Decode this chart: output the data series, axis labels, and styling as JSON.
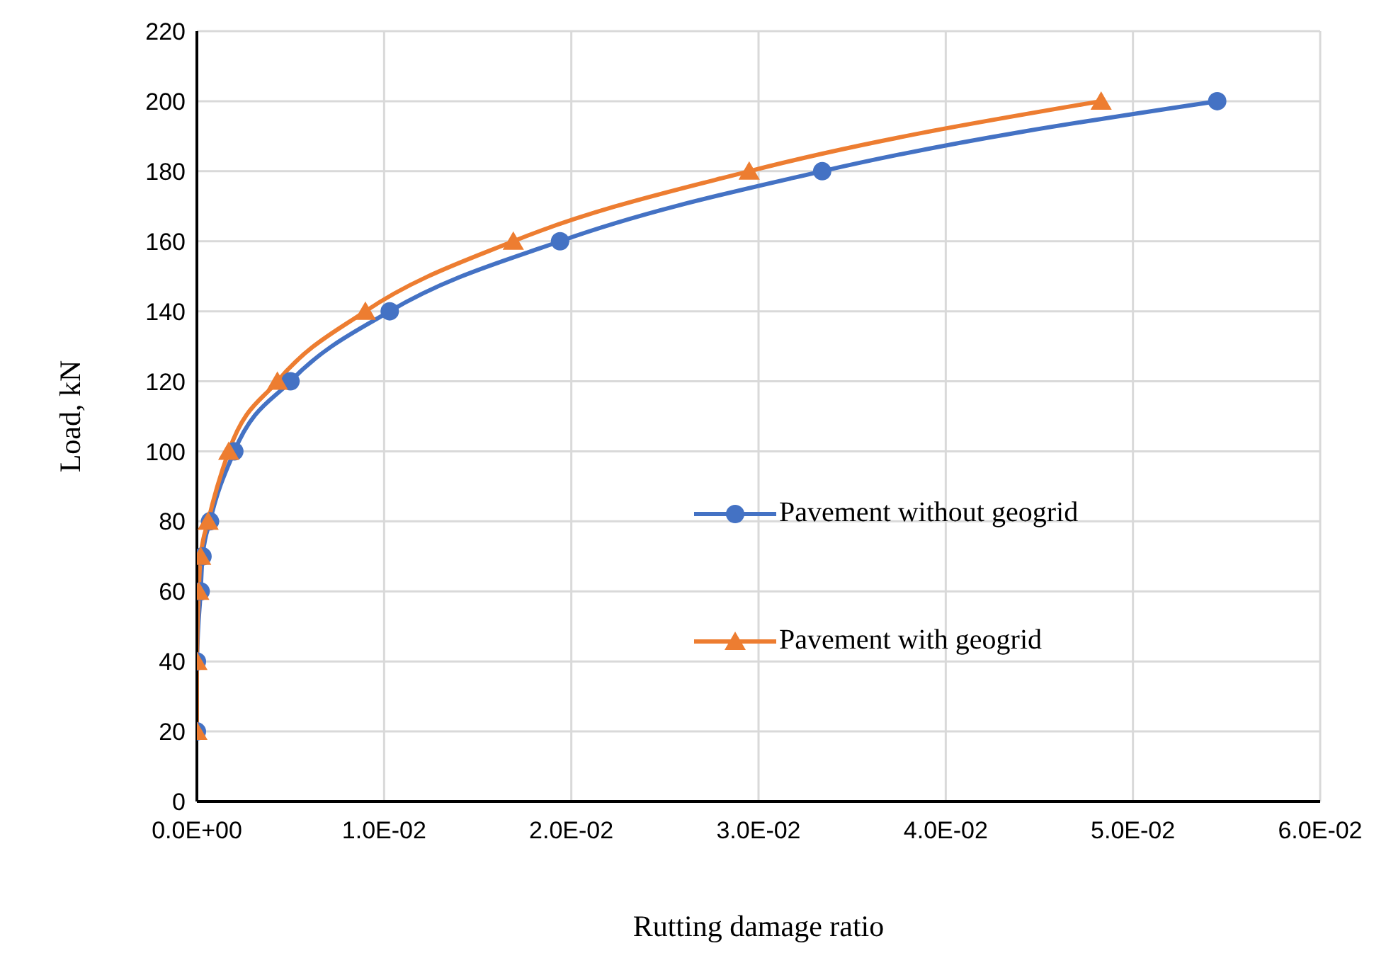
{
  "chart_data": {
    "type": "line",
    "xlabel": "Rutting damage ratio",
    "ylabel": "Load, kN",
    "xlim": [
      0,
      0.06
    ],
    "xticks": [
      {
        "value": 0,
        "label": "0.0E+00"
      },
      {
        "value": 0.01,
        "label": "1.0E-02"
      },
      {
        "value": 0.02,
        "label": "2.0E-02"
      },
      {
        "value": 0.03,
        "label": "3.0E-02"
      },
      {
        "value": 0.04,
        "label": "4.0E-02"
      },
      {
        "value": 0.05,
        "label": "5.0E-02"
      },
      {
        "value": 0.06,
        "label": "6.0E-02"
      }
    ],
    "ylim": [
      0,
      220
    ],
    "yticks": [
      0,
      20,
      40,
      60,
      80,
      100,
      120,
      140,
      160,
      180,
      200,
      220
    ],
    "grid": true,
    "legend": "center",
    "series": [
      {
        "name": "Pavement without geogrid",
        "color": "#4472c4",
        "marker": "circle",
        "x": [
          0,
          0,
          0.0002,
          0.0003,
          0.0007,
          0.002,
          0.005,
          0.0103,
          0.0194,
          0.0334,
          0.0545
        ],
        "values": [
          20,
          40,
          60,
          70,
          80,
          100,
          120,
          140,
          160,
          180,
          200
        ]
      },
      {
        "name": "Pavement with geogrid",
        "color": "#ed7d31",
        "marker": "triangle",
        "x": [
          0,
          0,
          0.0001,
          0.0002,
          0.0006,
          0.0017,
          0.0043,
          0.009,
          0.0169,
          0.0295,
          0.0483
        ],
        "values": [
          20,
          40,
          60,
          70,
          80,
          100,
          120,
          140,
          160,
          180,
          200
        ]
      }
    ]
  }
}
